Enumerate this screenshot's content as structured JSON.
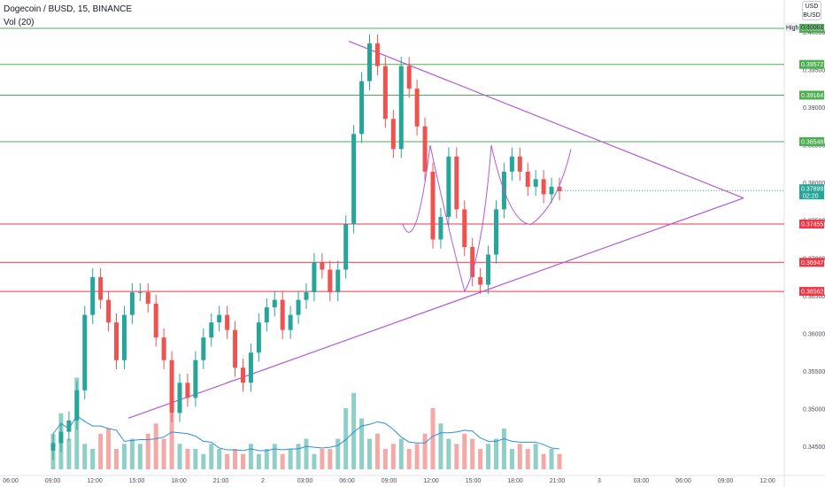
{
  "header": {
    "title": "Dogecoin / BUSD, 15, BINANCE",
    "indicator": "Vol (20)"
  },
  "currency": {
    "line1": "USD",
    "line2": "BUSD"
  },
  "colors": {
    "up": "#26a69a",
    "down": "#ef5350",
    "vol_up": "#8ecfc8",
    "vol_down": "#f4a9a6",
    "support": "#f23645",
    "resistance": "#4caf50",
    "pattern": "#b45bd6",
    "vol_ma": "#2e8fd9",
    "last_price": "#26a69a",
    "axis_text": "#4a4f5a"
  },
  "chart_data": {
    "type": "candlestick",
    "symbol": "Dogecoin / BUSD",
    "interval": "15",
    "exchange": "BINANCE",
    "price_axis": {
      "ticks": [
        "0.40000",
        "0.39500",
        "0.39000",
        "0.38500",
        "0.38000",
        "0.37500",
        "0.37000",
        "0.36500",
        "0.36000",
        "0.35500",
        "0.35000",
        "0.34500"
      ],
      "range": [
        0.3432,
        0.4025
      ]
    },
    "time_axis": {
      "ticks": [
        "06:00",
        "09:00",
        "12:00",
        "15:00",
        "18:00",
        "21:00",
        "2",
        "03:00",
        "06:00",
        "09:00",
        "12:00",
        "15:00",
        "18:00",
        "21:00",
        "3",
        "03:00",
        "06:00",
        "09:00",
        "12:00"
      ]
    },
    "high_label": "High",
    "high_value": "0.40064",
    "last_price": "0.37899",
    "countdown": "02:20",
    "horizontal_levels": [
      {
        "value": "0.40050",
        "kind": "resistance"
      },
      {
        "value": "0.39572",
        "kind": "resistance"
      },
      {
        "value": "0.39164",
        "kind": "resistance"
      },
      {
        "value": "0.38548",
        "kind": "resistance"
      },
      {
        "value": "0.37455",
        "kind": "support"
      },
      {
        "value": "0.36947",
        "kind": "support"
      },
      {
        "value": "0.36562",
        "kind": "support"
      }
    ],
    "triangle": {
      "upper_line": [
        [
          "06:00 day 2",
          0.3988
        ],
        [
          "09:00 day 3",
          0.378
        ]
      ],
      "lower_line": [
        [
          "15:00 day 1",
          0.3488
        ],
        [
          "09:00 day 3",
          0.378
        ]
      ]
    },
    "price_path": [
      0.3455,
      0.347,
      0.3485,
      0.3525,
      0.3625,
      0.3675,
      0.3645,
      0.3615,
      0.3565,
      0.3625,
      0.3655,
      0.3655,
      0.364,
      0.3595,
      0.3565,
      0.3495,
      0.3535,
      0.3515,
      0.3565,
      0.3595,
      0.3615,
      0.3625,
      0.3605,
      0.3555,
      0.3535,
      0.3575,
      0.3615,
      0.3635,
      0.3645,
      0.3605,
      0.3625,
      0.3645,
      0.3655,
      0.3695,
      0.3685,
      0.3655,
      0.3685,
      0.3745,
      0.3865,
      0.3935,
      0.3985,
      0.3955,
      0.3885,
      0.3845,
      0.3955,
      0.3925,
      0.3875,
      0.3815,
      0.3725,
      0.3755,
      0.3835,
      0.3765,
      0.3715,
      0.3675,
      0.3665,
      0.3705,
      0.3765,
      0.3815,
      0.3835,
      0.3815,
      0.3795,
      0.3805,
      0.3785,
      0.3795,
      0.3789
    ],
    "volume_path": [
      0.35,
      0.55,
      0.3,
      0.9,
      0.25,
      0.2,
      0.35,
      0.4,
      0.2,
      0.25,
      0.3,
      0.25,
      0.35,
      0.45,
      0.3,
      0.55,
      0.25,
      0.2,
      0.2,
      0.15,
      0.25,
      0.2,
      0.15,
      0.2,
      0.15,
      0.25,
      0.15,
      0.2,
      0.25,
      0.15,
      0.2,
      0.25,
      0.3,
      0.15,
      0.2,
      0.2,
      0.3,
      0.6,
      0.75,
      0.5,
      0.3,
      0.35,
      0.2,
      0.25,
      0.3,
      0.2,
      0.25,
      0.35,
      0.6,
      0.45,
      0.3,
      0.25,
      0.35,
      0.3,
      0.2,
      0.25,
      0.3,
      0.4,
      0.2,
      0.25,
      0.2,
      0.25,
      0.15,
      0.2,
      0.15
    ]
  }
}
